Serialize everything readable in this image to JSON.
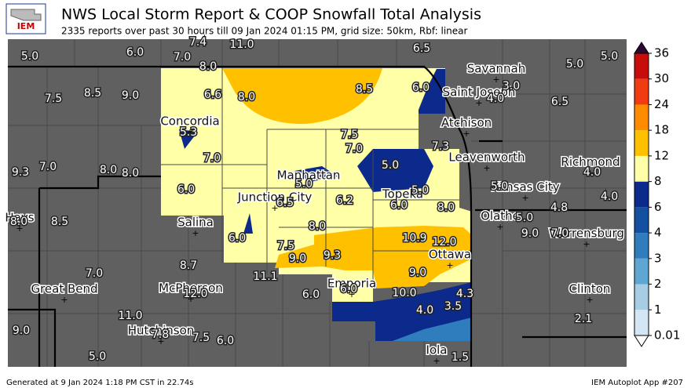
{
  "header": {
    "logo": "IEM",
    "title": "NWS Local Storm Report & COOP Snowfall Total Analysis",
    "subtitle": "2335 reports over past 30 hours till 09 Jan 2024 01:15 PM, grid size: 50km, Rbf: linear"
  },
  "map": {
    "values": [
      "5.0",
      "6.0",
      "7.4",
      "7.0",
      "11.0",
      "8.0",
      "6.5",
      "5.0",
      "5.0",
      "7.5",
      "8.5",
      "9.0",
      "6.6",
      "8.0",
      "8.5",
      "6.0",
      "3.0",
      "4.0",
      "6.5",
      "5.3",
      "7.5",
      "7.0",
      "7.3",
      "7.0",
      "5.0",
      "9.3",
      "7.0",
      "8.0",
      "8.0",
      "4.0",
      "6.0",
      "5.0",
      "5.0",
      "5.0",
      "4.0",
      "6.5",
      "6.2",
      "6.0",
      "8.0",
      "5.0",
      "4.8",
      "8.0",
      "8.5",
      "8.0",
      "9.0",
      "7.0",
      "6.0",
      "10.9",
      "12.0",
      "7.5",
      "9.0",
      "9.3",
      "8.7",
      "7.0",
      "11.1",
      "9.0",
      "12.0",
      "6.0",
      "6.0",
      "10.0",
      "4.3",
      "3.5",
      "4.0",
      "11.0",
      "2.1",
      "9.0",
      "7.8",
      "7.5",
      "6.0",
      "5.0",
      "1.5"
    ],
    "cities": [
      "Savannah",
      "Saint Joseph",
      "Atchison",
      "Concordia",
      "Leavenworth",
      "Richmond",
      "Manhattan",
      "Kansas City",
      "Junction City",
      "Topeka",
      "Hays",
      "Salina",
      "Olathe",
      "Warrensburg",
      "Ottawa",
      "Great Bend",
      "McPherson",
      "Emporia",
      "Clinton",
      "Hutchinson",
      "Iola"
    ]
  },
  "legend": {
    "ticks": [
      0.01,
      1,
      2,
      3,
      4,
      6,
      8,
      12,
      18,
      24,
      30,
      36
    ],
    "colors": [
      "#d4e5f4",
      "#a6cde4",
      "#5fa6d3",
      "#2f7dbd",
      "#1450a0",
      "#0b2a8c",
      "#ffffa8",
      "#ffc000",
      "#ff8c00",
      "#f03c10",
      "#c80c0c",
      "#780000"
    ],
    "over_color": "#2a0a30",
    "under_color": "#ffffff"
  },
  "footer": {
    "left": "Generated at 9 Jan 2024 1:18 PM CST in 22.74s",
    "right": "IEM Autoplot App #207"
  }
}
